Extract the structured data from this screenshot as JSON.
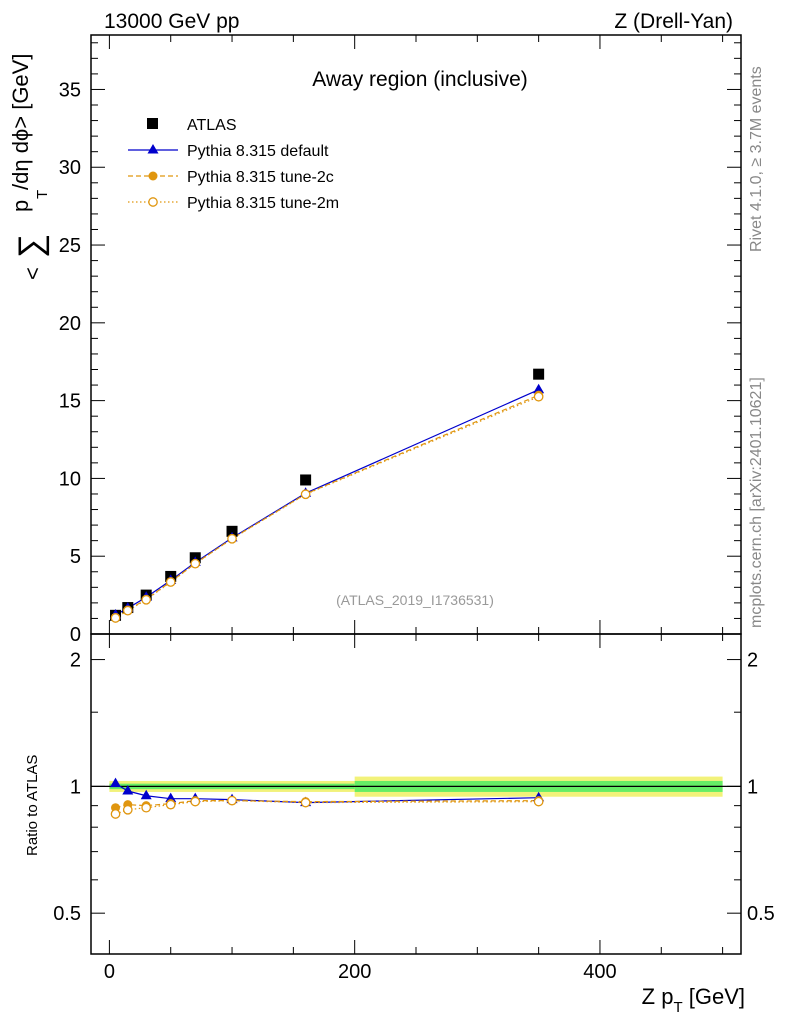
{
  "header": {
    "left": "13000 GeV pp",
    "right": "Z (Drell-Yan)"
  },
  "side": {
    "rivet": "Rivet 4.1.0, ≥ 3.7M events",
    "mcplots": "mcplots.cern.ch [arXiv:2401.10621]"
  },
  "colors": {
    "atlas": "#000000",
    "default": "#0000cc",
    "tune": "#e0960f",
    "band_inner": "#66ee66",
    "band_outer": "#f2f27a"
  },
  "chart_data": [
    {
      "type": "line",
      "title": "Away region (inclusive)",
      "analysis": "(ATLAS_2019_I1736531)",
      "ylabel": "< ∑ p_T /dη dϕ> [GeV]",
      "xlim": [
        -15,
        515
      ],
      "ylim": [
        0,
        38.5
      ],
      "yticks": [
        0,
        5,
        10,
        15,
        20,
        25,
        30,
        35
      ],
      "ytick_labels": [
        "0",
        "5",
        "10",
        "15",
        "20",
        "25",
        "30",
        "35"
      ],
      "legend_position": "top-left",
      "series": [
        {
          "name": "ATLAS",
          "style": "data-square",
          "x": [
            5,
            15,
            30,
            50,
            70,
            100,
            160,
            350
          ],
          "y": [
            1.2,
            1.7,
            2.5,
            3.7,
            4.9,
            6.6,
            9.9,
            16.7
          ]
        },
        {
          "name": "Pythia 8.315 default",
          "style": "solid-triangle",
          "x": [
            5,
            15,
            30,
            50,
            70,
            100,
            160,
            350
          ],
          "y": [
            1.22,
            1.66,
            2.36,
            3.45,
            4.6,
            6.18,
            9.05,
            15.7
          ]
        },
        {
          "name": "Pythia 8.315 tune-2c",
          "style": "dashed-circle-filled",
          "x": [
            5,
            15,
            30,
            50,
            70,
            100,
            160,
            350
          ],
          "y": [
            1.07,
            1.54,
            2.23,
            3.36,
            4.53,
            6.13,
            9.0,
            15.35
          ]
        },
        {
          "name": "Pythia 8.315 tune-2m",
          "style": "dotted-circle-open",
          "x": [
            5,
            15,
            30,
            50,
            70,
            100,
            160,
            350
          ],
          "y": [
            1.03,
            1.5,
            2.2,
            3.34,
            4.52,
            6.12,
            8.98,
            15.25
          ]
        }
      ]
    },
    {
      "type": "line",
      "title": "",
      "xlabel": "Z p_T [GeV]",
      "ylabel": "Ratio to ATLAS",
      "xlim": [
        -15,
        515
      ],
      "ylim": [
        0.4,
        2.3
      ],
      "xticks": [
        0,
        200,
        400
      ],
      "xtick_labels": [
        "0",
        "200",
        "400"
      ],
      "yticks": [
        0.5,
        1,
        2
      ],
      "ytick_labels": [
        "0.5",
        "1",
        "2"
      ],
      "yscale": "log",
      "bands": [
        {
          "x": [
            0,
            200
          ],
          "inner": [
            0.985,
            1.015
          ],
          "outer": [
            0.97,
            1.03
          ]
        },
        {
          "x": [
            200,
            500
          ],
          "inner": [
            0.97,
            1.03
          ],
          "outer": [
            0.945,
            1.055
          ]
        }
      ],
      "series": [
        {
          "name": "Pythia 8.315 default",
          "style": "solid-triangle",
          "x": [
            5,
            15,
            30,
            50,
            70,
            100,
            160,
            350
          ],
          "y": [
            1.015,
            0.975,
            0.95,
            0.935,
            0.935,
            0.93,
            0.915,
            0.94
          ]
        },
        {
          "name": "Pythia 8.315 tune-2c",
          "style": "dashed-circle-filled",
          "x": [
            5,
            15,
            30,
            50,
            70,
            100,
            160,
            350
          ],
          "y": [
            0.89,
            0.905,
            0.9,
            0.91,
            0.925,
            0.925,
            0.92,
            0.925
          ]
        },
        {
          "name": "Pythia 8.315 tune-2m",
          "style": "dotted-circle-open",
          "x": [
            5,
            15,
            30,
            50,
            70,
            100,
            160,
            350
          ],
          "y": [
            0.86,
            0.88,
            0.89,
            0.905,
            0.92,
            0.925,
            0.915,
            0.92
          ]
        }
      ]
    }
  ]
}
